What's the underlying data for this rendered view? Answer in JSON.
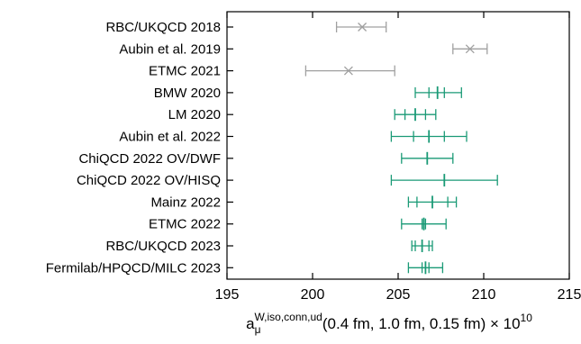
{
  "chart_data": {
    "type": "scatter",
    "orientation": "horizontal-errorbar",
    "xlabel": {
      "base": "a",
      "sub": "μ",
      "sup": "W,iso,conn,ud",
      "rest": "(0.4 fm, 1.0 fm, 0.15 fm) × 10",
      "exp": "10"
    },
    "xlim": [
      195,
      215
    ],
    "xticks": [
      195,
      200,
      205,
      210,
      215
    ],
    "grid": false,
    "legend": "none",
    "colors": {
      "gray": "#a0a0a0",
      "green": "#1a9a76"
    },
    "series": [
      {
        "label": "RBC/UKQCD 2018",
        "color": "gray",
        "marker": "x",
        "central": 202.9,
        "total": [
          201.4,
          204.3
        ],
        "inner": null
      },
      {
        "label": "Aubin et al. 2019",
        "color": "gray",
        "marker": "x",
        "central": 209.2,
        "total": [
          208.2,
          210.2
        ],
        "inner": null
      },
      {
        "label": "ETMC 2021",
        "color": "gray",
        "marker": "x",
        "central": 202.1,
        "total": [
          199.6,
          204.8
        ],
        "inner": null
      },
      {
        "label": "BMW 2020",
        "color": "green",
        "marker": "+",
        "central": 207.3,
        "total": [
          206.0,
          208.7
        ],
        "inner": [
          206.8,
          207.7
        ]
      },
      {
        "label": "LM 2020",
        "color": "green",
        "marker": "+",
        "central": 206.0,
        "total": [
          204.8,
          207.2
        ],
        "inner": [
          205.4,
          206.6
        ]
      },
      {
        "label": "Aubin et al. 2022",
        "color": "green",
        "marker": "+",
        "central": 206.8,
        "total": [
          204.6,
          209.0
        ],
        "inner": [
          205.9,
          207.7
        ]
      },
      {
        "label": "ChiQCD 2022 OV/DWF",
        "color": "green",
        "marker": "+",
        "central": 206.7,
        "total": [
          205.2,
          208.2
        ],
        "inner": null
      },
      {
        "label": "ChiQCD 2022 OV/HISQ",
        "color": "green",
        "marker": "+",
        "central": 207.7,
        "total": [
          204.6,
          210.8
        ],
        "inner": null
      },
      {
        "label": "Mainz 2022",
        "color": "green",
        "marker": "+",
        "central": 207.0,
        "total": [
          205.6,
          208.4
        ],
        "inner": [
          206.1,
          207.9
        ]
      },
      {
        "label": "ETMC 2022",
        "color": "green",
        "marker": "+",
        "central": 206.5,
        "total": [
          205.2,
          207.8
        ],
        "inner": [
          206.4,
          206.6
        ]
      },
      {
        "label": "RBC/UKQCD 2023",
        "color": "green",
        "marker": "+",
        "central": 206.4,
        "total": [
          205.8,
          207.0
        ],
        "inner": [
          206.0,
          206.8
        ]
      },
      {
        "label": "Fermilab/HPQCD/MILC 2023",
        "color": "green",
        "marker": "+",
        "central": 206.6,
        "total": [
          205.6,
          207.6
        ],
        "inner": [
          206.4,
          206.8
        ]
      }
    ]
  }
}
